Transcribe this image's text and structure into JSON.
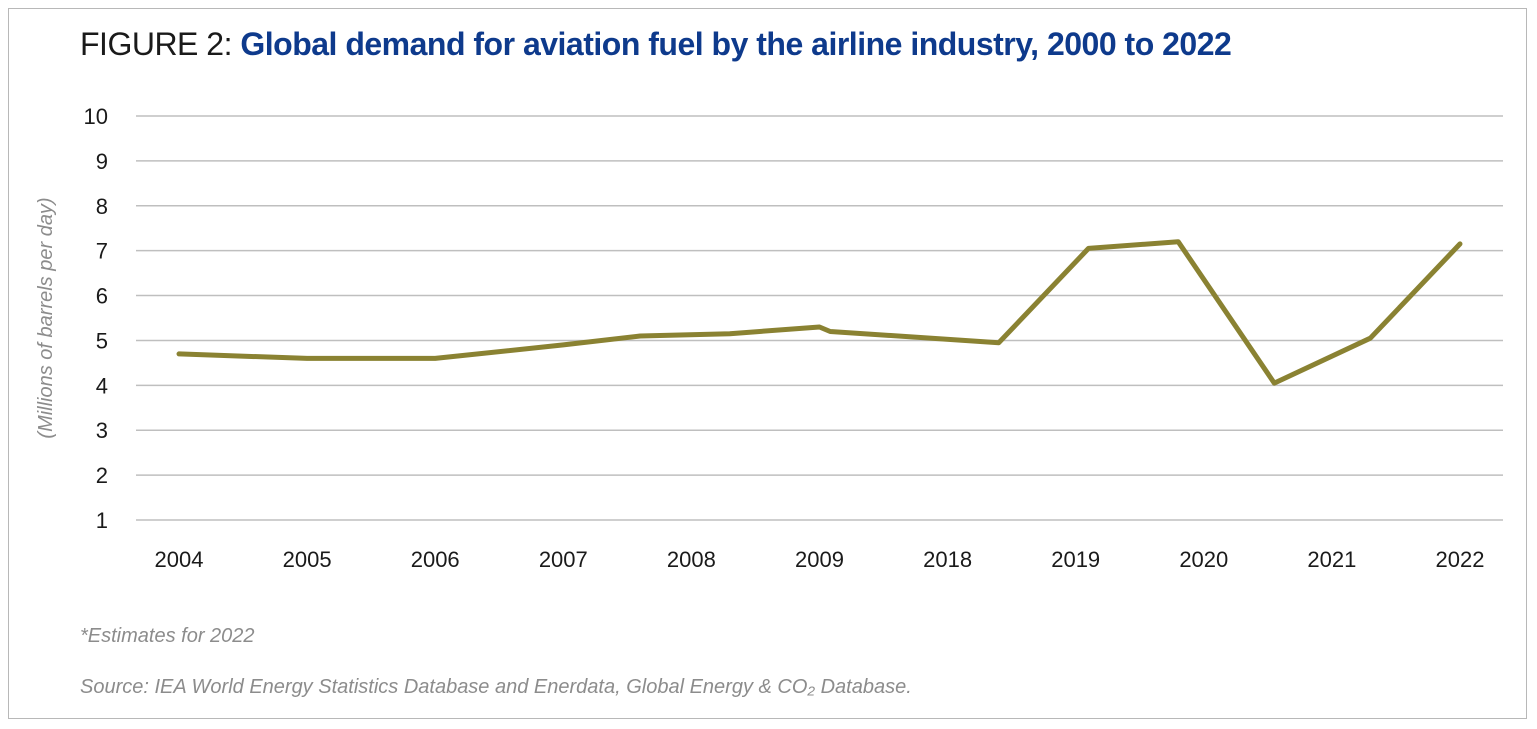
{
  "title": {
    "prefix": "FIGURE 2:",
    "main": "Global demand for aviation fuel by the airline industry, 2000 to 2022"
  },
  "notes": {
    "estimate": "*Estimates for 2022",
    "source": "Source: IEA World Energy Statistics Database and Enerdata, Global Energy & CO₂ Database."
  },
  "colors": {
    "line": "#8a8232",
    "grid": "#bfbfbf",
    "title_main": "#0e3a8c"
  },
  "chart_data": {
    "type": "line",
    "ylabel": "(Millions of barrels per day)",
    "xlabel": "",
    "categories": [
      "2004",
      "2005",
      "2006",
      "2007",
      "2008",
      "2009",
      "2018",
      "2019",
      "2020",
      "2021",
      "2022"
    ],
    "yticks": [
      "1",
      "2",
      "3",
      "4",
      "5",
      "6",
      "7",
      "8",
      "9",
      "10"
    ],
    "ylim": [
      1,
      10
    ],
    "grid": true,
    "series": [
      {
        "x": [
          2004.0,
          2005.0,
          2006.0,
          2007.0,
          2007.6,
          2008.3,
          2009.0,
          2009.75,
          2018.4,
          2019.1,
          2019.8,
          2020.55,
          2021.3,
          2022.0
        ],
        "values": [
          4.7,
          4.6,
          4.6,
          4.9,
          5.1,
          5.15,
          5.3,
          5.2,
          4.95,
          7.05,
          7.2,
          4.05,
          5.05,
          7.15
        ]
      }
    ]
  }
}
